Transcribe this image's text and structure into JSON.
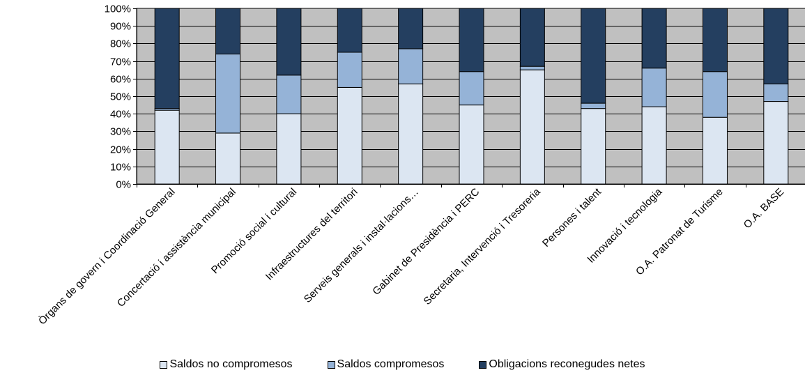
{
  "chart_data": {
    "type": "bar",
    "stacked": true,
    "percent": true,
    "categories": [
      "Òrgans de govern i Coordinació General",
      "Concertació i assistència municipal",
      "Promoció social i cultural",
      "Infraestructures del territori",
      "Serveis generals i instal·lacions…",
      "Gabinet de Presidència i PERC",
      "Secretaria, Intervenció i Tresoreria",
      "Persones i talent",
      "Innovació i tecnologia",
      "O.A. Patronat de Turisme",
      "O.A. BASE"
    ],
    "series": [
      {
        "name": "Saldos no compromesos",
        "color": "#dce6f2",
        "values": [
          42,
          29,
          40,
          55,
          57,
          45,
          65,
          43,
          44,
          38,
          47
        ]
      },
      {
        "name": "Saldos compromesos",
        "color": "#95b3d7",
        "values": [
          1,
          45,
          22,
          20,
          20,
          19,
          2,
          3,
          22,
          26,
          10
        ]
      },
      {
        "name": "Obligacions reconegudes netes",
        "color": "#243f60",
        "values": [
          57,
          26,
          38,
          25,
          23,
          36,
          33,
          54,
          34,
          36,
          43
        ]
      }
    ],
    "yticks": [
      "0%",
      "10%",
      "20%",
      "30%",
      "40%",
      "50%",
      "60%",
      "70%",
      "80%",
      "90%",
      "100%"
    ],
    "ylim": [
      0,
      100
    ],
    "plot_background": "#c0c0c0",
    "grid": true,
    "legend_position": "bottom"
  }
}
